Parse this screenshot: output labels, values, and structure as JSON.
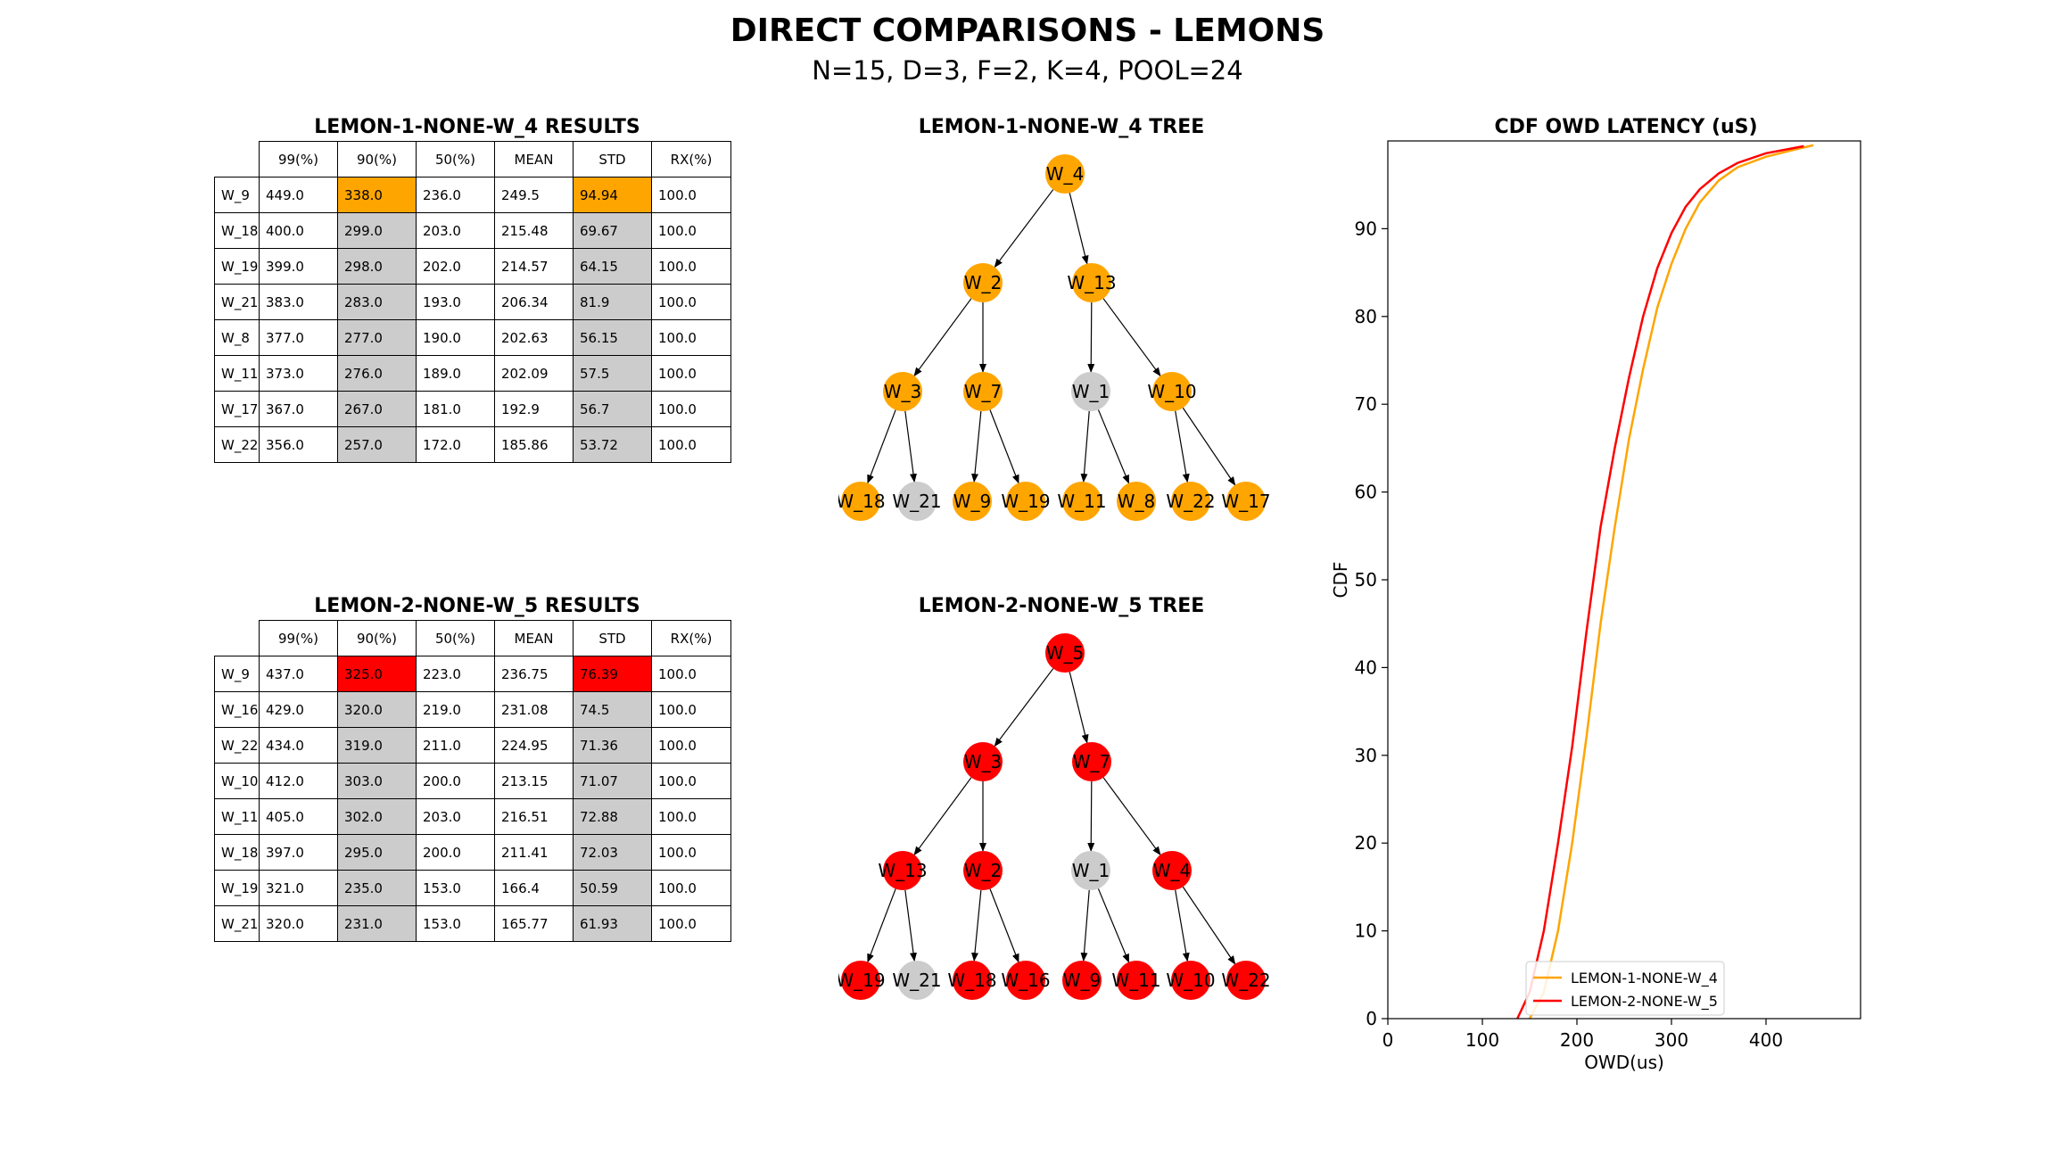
{
  "title": "DIRECT COMPARISONS - LEMONS",
  "subtitle": "N=15, D=3, F=2, K=4, POOL=24",
  "colors": {
    "lemon1": "#ffa500",
    "lemon2": "#ff0000",
    "gray": "#cccccc"
  },
  "tables": [
    {
      "title": "LEMON-1-NONE-W_4 RESULTS",
      "headers": [
        "99(%)",
        "90(%)",
        "50(%)",
        "MEAN",
        "STD",
        "RX(%)"
      ],
      "rows": [
        {
          "label": "W_9",
          "cells": [
            "449.0",
            "338.0",
            "236.0",
            "249.5",
            "94.94",
            "100.0"
          ]
        },
        {
          "label": "W_18",
          "cells": [
            "400.0",
            "299.0",
            "203.0",
            "215.48",
            "69.67",
            "100.0"
          ]
        },
        {
          "label": "W_19",
          "cells": [
            "399.0",
            "298.0",
            "202.0",
            "214.57",
            "64.15",
            "100.0"
          ]
        },
        {
          "label": "W_21",
          "cells": [
            "383.0",
            "283.0",
            "193.0",
            "206.34",
            "81.9",
            "100.0"
          ]
        },
        {
          "label": "W_8",
          "cells": [
            "377.0",
            "277.0",
            "190.0",
            "202.63",
            "56.15",
            "100.0"
          ]
        },
        {
          "label": "W_11",
          "cells": [
            "373.0",
            "276.0",
            "189.0",
            "202.09",
            "57.5",
            "100.0"
          ]
        },
        {
          "label": "W_17",
          "cells": [
            "367.0",
            "267.0",
            "181.0",
            "192.9",
            "56.7",
            "100.0"
          ]
        },
        {
          "label": "W_22",
          "cells": [
            "356.0",
            "257.0",
            "172.0",
            "185.86",
            "53.72",
            "100.0"
          ]
        }
      ]
    },
    {
      "title": "LEMON-2-NONE-W_5 RESULTS",
      "headers": [
        "99(%)",
        "90(%)",
        "50(%)",
        "MEAN",
        "STD",
        "RX(%)"
      ],
      "rows": [
        {
          "label": "W_9",
          "cells": [
            "437.0",
            "325.0",
            "223.0",
            "236.75",
            "76.39",
            "100.0"
          ]
        },
        {
          "label": "W_16",
          "cells": [
            "429.0",
            "320.0",
            "219.0",
            "231.08",
            "74.5",
            "100.0"
          ]
        },
        {
          "label": "W_22",
          "cells": [
            "434.0",
            "319.0",
            "211.0",
            "224.95",
            "71.36",
            "100.0"
          ]
        },
        {
          "label": "W_10",
          "cells": [
            "412.0",
            "303.0",
            "200.0",
            "213.15",
            "71.07",
            "100.0"
          ]
        },
        {
          "label": "W_11",
          "cells": [
            "405.0",
            "302.0",
            "203.0",
            "216.51",
            "72.88",
            "100.0"
          ]
        },
        {
          "label": "W_18",
          "cells": [
            "397.0",
            "295.0",
            "200.0",
            "211.41",
            "72.03",
            "100.0"
          ]
        },
        {
          "label": "W_19",
          "cells": [
            "321.0",
            "235.0",
            "153.0",
            "166.4",
            "50.59",
            "100.0"
          ]
        },
        {
          "label": "W_21",
          "cells": [
            "320.0",
            "231.0",
            "153.0",
            "165.77",
            "61.93",
            "100.0"
          ]
        }
      ]
    }
  ],
  "trees": [
    {
      "title": "LEMON-1-NONE-W_4 TREE",
      "nodes": [
        {
          "label": "W_4",
          "active": true
        },
        {
          "label": "W_2",
          "active": true
        },
        {
          "label": "W_13",
          "active": true
        },
        {
          "label": "W_3",
          "active": true
        },
        {
          "label": "W_7",
          "active": true
        },
        {
          "label": "W_1",
          "active": false
        },
        {
          "label": "W_10",
          "active": true
        },
        {
          "label": "W_18",
          "active": true
        },
        {
          "label": "W_21",
          "active": false
        },
        {
          "label": "W_9",
          "active": true
        },
        {
          "label": "W_19",
          "active": true
        },
        {
          "label": "W_11",
          "active": true
        },
        {
          "label": "W_8",
          "active": true
        },
        {
          "label": "W_22",
          "active": true
        },
        {
          "label": "W_17",
          "active": true
        }
      ]
    },
    {
      "title": "LEMON-2-NONE-W_5 TREE",
      "nodes": [
        {
          "label": "W_5",
          "active": true
        },
        {
          "label": "W_3",
          "active": true
        },
        {
          "label": "W_7",
          "active": true
        },
        {
          "label": "W_13",
          "active": true
        },
        {
          "label": "W_2",
          "active": true
        },
        {
          "label": "W_1",
          "active": false
        },
        {
          "label": "W_4",
          "active": true
        },
        {
          "label": "W_19",
          "active": true
        },
        {
          "label": "W_21",
          "active": false
        },
        {
          "label": "W_18",
          "active": true
        },
        {
          "label": "W_16",
          "active": true
        },
        {
          "label": "W_9",
          "active": true
        },
        {
          "label": "W_11",
          "active": true
        },
        {
          "label": "W_10",
          "active": true
        },
        {
          "label": "W_22",
          "active": true
        }
      ]
    }
  ],
  "chart_data": {
    "type": "line",
    "title": "CDF OWD LATENCY (uS)",
    "xlabel": "OWD(us)",
    "ylabel": "CDF",
    "xlim": [
      0,
      500
    ],
    "ylim": [
      0,
      100
    ],
    "xticks": [
      0,
      100,
      200,
      300,
      400
    ],
    "yticks": [
      0,
      10,
      20,
      30,
      40,
      50,
      60,
      70,
      80,
      90
    ],
    "grid": false,
    "legend": "lower-center",
    "series": [
      {
        "name": "LEMON-1-NONE-W_4",
        "color": "#ffa500",
        "points": [
          [
            150,
            0
          ],
          [
            165,
            3
          ],
          [
            180,
            10
          ],
          [
            195,
            20
          ],
          [
            210,
            32
          ],
          [
            225,
            45
          ],
          [
            240,
            56
          ],
          [
            255,
            66
          ],
          [
            270,
            74
          ],
          [
            285,
            81
          ],
          [
            300,
            86
          ],
          [
            315,
            90
          ],
          [
            330,
            93
          ],
          [
            350,
            95.5
          ],
          [
            370,
            97
          ],
          [
            400,
            98.2
          ],
          [
            430,
            99
          ],
          [
            450,
            99.5
          ]
        ]
      },
      {
        "name": "LEMON-2-NONE-W_5",
        "color": "#ff0000",
        "points": [
          [
            137,
            0
          ],
          [
            150,
            3
          ],
          [
            165,
            10
          ],
          [
            180,
            20
          ],
          [
            195,
            31
          ],
          [
            210,
            44
          ],
          [
            225,
            56
          ],
          [
            240,
            65
          ],
          [
            255,
            73
          ],
          [
            270,
            80
          ],
          [
            285,
            85.5
          ],
          [
            300,
            89.5
          ],
          [
            315,
            92.5
          ],
          [
            330,
            94.5
          ],
          [
            350,
            96.3
          ],
          [
            370,
            97.5
          ],
          [
            400,
            98.6
          ],
          [
            440,
            99.4
          ]
        ]
      }
    ]
  }
}
